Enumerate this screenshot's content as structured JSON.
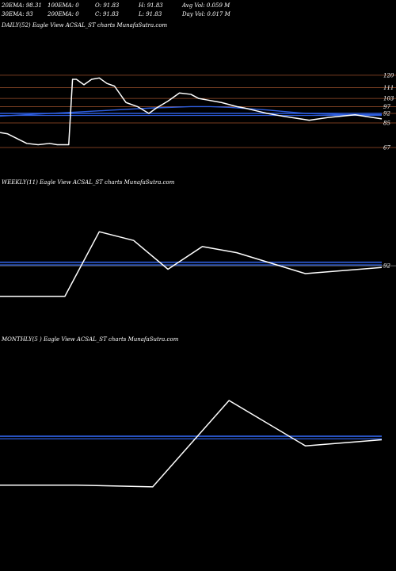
{
  "header": {
    "row1": [
      "20EMA: 98.31",
      "100EMA: 0",
      "O: 91.83",
      "H: 91.83",
      "Avg Vol: 0.059 M"
    ],
    "row2": [
      "30EMA: 93",
      "200EMA: 0",
      "C: 91.83",
      "L: 91.83",
      "Day Vol: 0.017 M"
    ]
  },
  "colors": {
    "background": "#000000",
    "price_line": "#ffffff",
    "ema_line": "#2f5fe0",
    "level_line": "#a0522d",
    "ref_line": "#8a8a8a"
  },
  "chart_data": [
    {
      "type": "line",
      "title": "DAILY(52) Eagle  View  ACSAL_ST charts MunafaSutra.com",
      "ylim": [
        60,
        124
      ],
      "tick_labels": [
        120,
        111,
        103,
        97,
        92,
        85,
        67
      ],
      "levels": [
        120,
        111,
        103,
        97,
        92,
        85,
        67
      ],
      "ema_levels": [
        92,
        90.5
      ],
      "ema_curve": {
        "x": [
          0,
          0.1,
          0.2,
          0.3,
          0.4,
          0.5,
          0.55,
          0.6,
          0.7,
          0.8,
          0.9,
          1.0
        ],
        "y": [
          90,
          91.5,
          93,
          94.5,
          96,
          97,
          97,
          96.5,
          94.5,
          92,
          91,
          91
        ]
      },
      "series": [
        {
          "x": [
            0,
            0.02,
            0.07,
            0.1,
            0.13,
            0.15,
            0.18,
            0.19,
            0.2,
            0.22,
            0.24,
            0.26,
            0.28,
            0.3,
            0.33,
            0.36,
            0.39,
            0.41,
            0.44,
            0.47,
            0.5,
            0.52,
            0.54,
            0.58,
            0.62,
            0.64,
            0.67,
            0.7,
            0.74,
            0.81,
            0.86,
            0.93,
            1.0
          ],
          "y": [
            78,
            77,
            70,
            69,
            70,
            69,
            69,
            117,
            117,
            113,
            117,
            118,
            114,
            112,
            100,
            97,
            92,
            96,
            101,
            107,
            106,
            103,
            102,
            100,
            97,
            96,
            94,
            92,
            90,
            87,
            89,
            91,
            88
          ]
        }
      ]
    },
    {
      "type": "line",
      "title": "WEEKLY(11) Eagle  View  ACSAL_ST charts MunafaSutra.com",
      "ylim": [
        0,
        1
      ],
      "tick_labels": [
        92
      ],
      "levels": [
        0.59
      ],
      "ema_levels": [
        0.63,
        0.6
      ],
      "series": [
        {
          "x": [
            0,
            0.17,
            0.26,
            0.35,
            0.44,
            0.53,
            0.62,
            0.8,
            1.0
          ],
          "y": [
            0.24,
            0.24,
            0.98,
            0.88,
            0.55,
            0.81,
            0.74,
            0.5,
            0.57
          ]
        }
      ]
    },
    {
      "type": "line",
      "title": "MONTHLY(5            ) Eagle  View  ACSAL_ST charts MunafaSutra.com",
      "ylim": [
        0,
        1
      ],
      "levels": [],
      "ema_levels": [
        0.59,
        0.56
      ],
      "series": [
        {
          "x": [
            0,
            0.2,
            0.4,
            0.6,
            0.8,
            1.0
          ],
          "y": [
            0.03,
            0.03,
            0.01,
            1.0,
            0.48,
            0.55
          ]
        }
      ]
    }
  ]
}
